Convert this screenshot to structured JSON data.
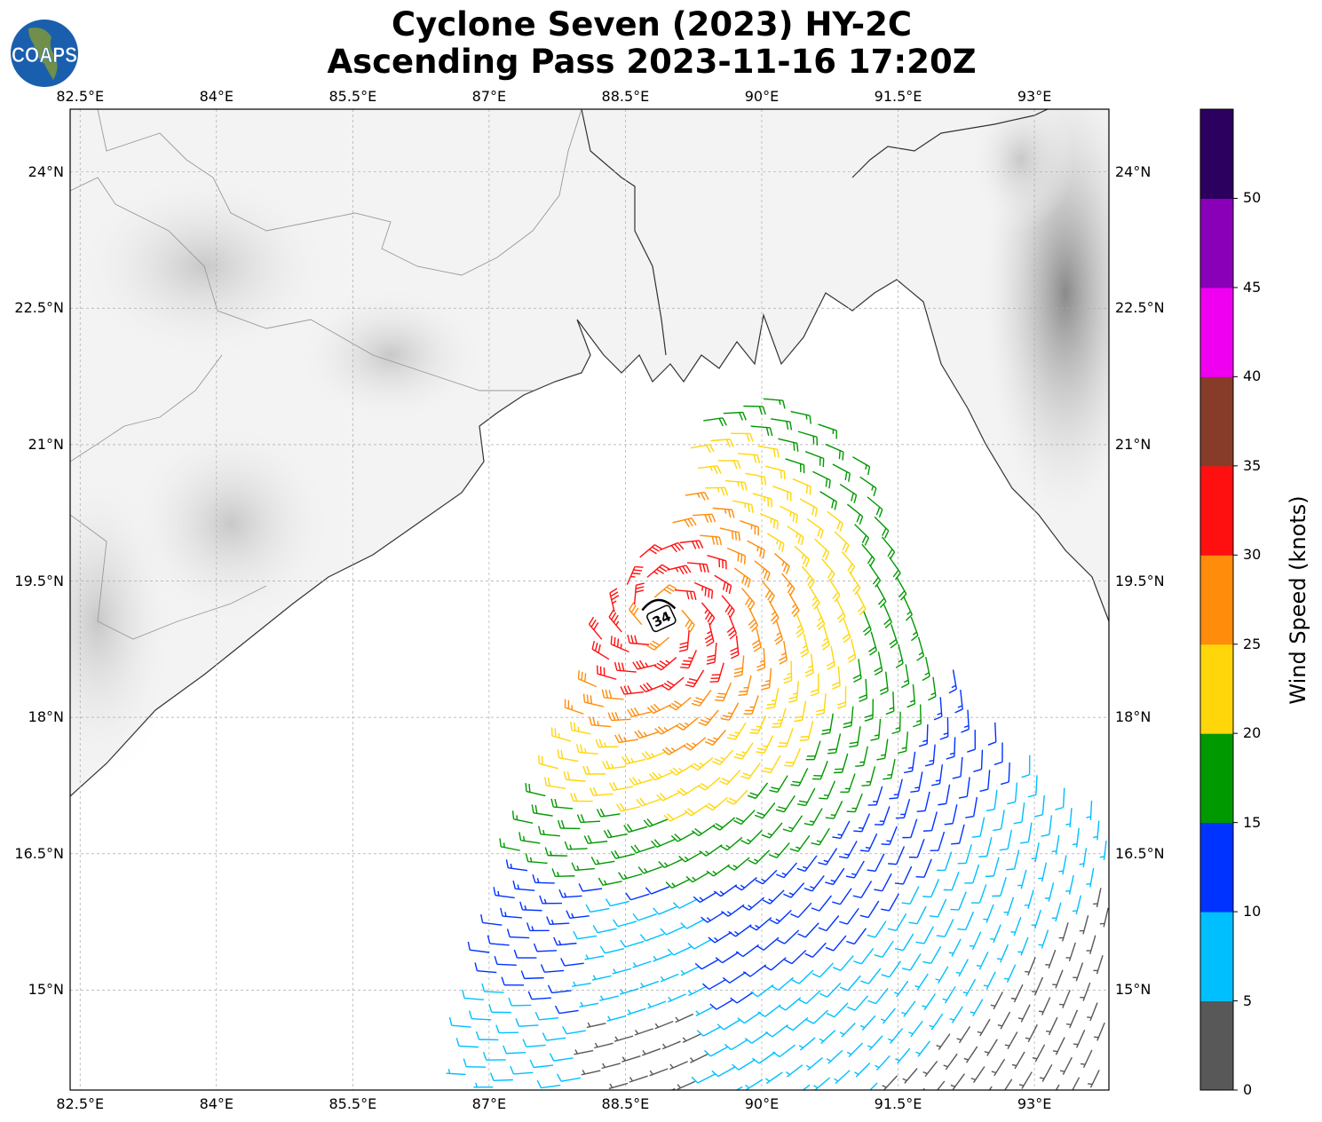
{
  "title": {
    "line1": "Cyclone Seven (2023) HY-2C",
    "line2": "Ascending Pass 2023-11-16 17:20Z"
  },
  "logo": {
    "text": "COAPS"
  },
  "map": {
    "lon_range": [
      82.39,
      93.82
    ],
    "lat_range": [
      13.9,
      24.69
    ],
    "lon_ticks": [
      {
        "value": 82.5,
        "label": "82.5°E"
      },
      {
        "value": 84,
        "label": "84°E"
      },
      {
        "value": 85.5,
        "label": "85.5°E"
      },
      {
        "value": 87,
        "label": "87°E"
      },
      {
        "value": 88.5,
        "label": "88.5°E"
      },
      {
        "value": 90,
        "label": "90°E"
      },
      {
        "value": 91.5,
        "label": "91.5°E"
      },
      {
        "value": 93,
        "label": "93°E"
      }
    ],
    "lat_ticks": [
      {
        "value": 24,
        "label": "24°N"
      },
      {
        "value": 22.5,
        "label": "22.5°N"
      },
      {
        "value": 21,
        "label": "21°N"
      },
      {
        "value": 19.5,
        "label": "19.5°N"
      },
      {
        "value": 18,
        "label": "18°N"
      },
      {
        "value": 16.5,
        "label": "16.5°N"
      },
      {
        "value": 15,
        "label": "15°N"
      }
    ],
    "storm_marker": {
      "label": "34",
      "lon": 88.9,
      "lat": 19.1
    }
  },
  "colorbar": {
    "label": "Wind Speed (knots)",
    "range": [
      0,
      55
    ],
    "ticks": [
      "0",
      "5",
      "10",
      "15",
      "20",
      "25",
      "30",
      "35",
      "40",
      "45",
      "50"
    ],
    "colors": [
      "#585858",
      "#00bfff",
      "#0033ff",
      "#009900",
      "#ffd60a",
      "#ff8c0a",
      "#ff1010",
      "#873c2a",
      "#f000f0",
      "#8a00b8",
      "#2c005e"
    ]
  }
}
